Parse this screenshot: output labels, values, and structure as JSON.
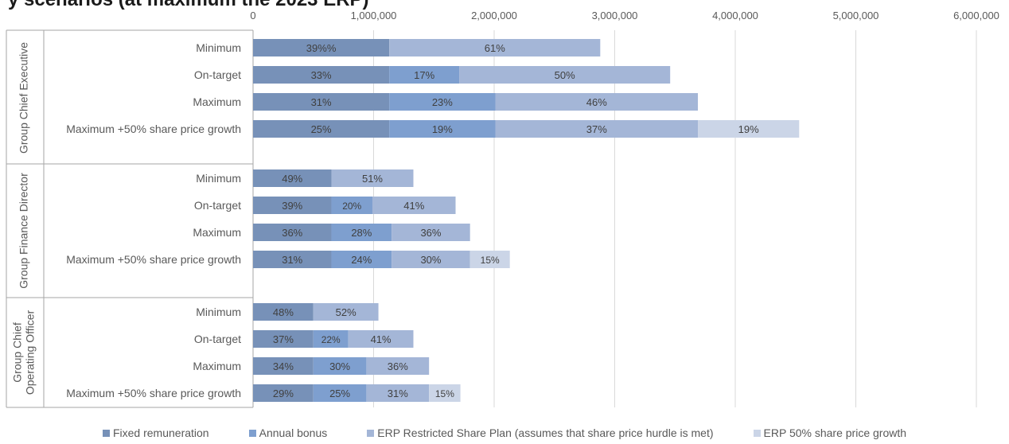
{
  "title": "y scenarios (at maximum the 2023 ERP)",
  "colors": {
    "fixed": "#7791b8",
    "bonus": "#7e9fcf",
    "erp": "#a4b6d7",
    "growth": "#cbd5e7",
    "grid": "#d9d9d9",
    "text": "#595959",
    "label": "#404040"
  },
  "chart_data": {
    "type": "bar",
    "orientation": "horizontal",
    "stacked": true,
    "xlim": [
      0,
      6000000
    ],
    "x_ticks": [
      "0",
      "1,000,000",
      "2,000,000",
      "3,000,000",
      "4,000,000",
      "5,000,000",
      "6,000,000"
    ],
    "x_axis_position": "top",
    "grid": true,
    "legend_position": "bottom",
    "series_names": [
      "Fixed remuneration",
      "Annual bonus",
      "ERP Restricted Share Plan (assumes that share price hurdle is met)",
      "ERP 50% share price growth"
    ],
    "groups": [
      {
        "label": "Group Chief Executive",
        "bars": [
          {
            "label": "Minimum",
            "values": [
              1130000,
              0,
              1750000,
              0
            ],
            "labels": [
              "39%%",
              "",
              "61%",
              ""
            ]
          },
          {
            "label": "On-target",
            "values": [
              1130000,
              580000,
              1750000,
              0
            ],
            "labels": [
              "33%",
              "17%",
              "50%",
              ""
            ]
          },
          {
            "label": "Maximum",
            "values": [
              1130000,
              880000,
              1680000,
              0
            ],
            "labels": [
              "31%",
              "23%",
              "46%",
              ""
            ]
          },
          {
            "label": "Maximum +50% share price growth",
            "values": [
              1130000,
              880000,
              1680000,
              840000
            ],
            "labels": [
              "25%",
              "19%",
              "37%",
              "19%"
            ]
          }
        ]
      },
      {
        "label": "Group Finance Director",
        "bars": [
          {
            "label": "Minimum",
            "values": [
              650000,
              0,
              680000,
              0
            ],
            "labels": [
              "49%",
              "",
              "51%",
              ""
            ]
          },
          {
            "label": "On-target",
            "values": [
              650000,
              340000,
              690000,
              0
            ],
            "labels": [
              "39%",
              "20%",
              "41%",
              ""
            ]
          },
          {
            "label": "Maximum",
            "values": [
              650000,
              500000,
              650000,
              0
            ],
            "labels": [
              "36%",
              "28%",
              "36%",
              ""
            ]
          },
          {
            "label": "Maximum +50% share price growth",
            "values": [
              650000,
              500000,
              650000,
              330000
            ],
            "labels": [
              "31%",
              "24%",
              "30%",
              "15%"
            ]
          }
        ]
      },
      {
        "label_lines": [
          "Group Chief",
          "Operating Officer"
        ],
        "bars": [
          {
            "label": "Minimum",
            "values": [
              500000,
              0,
              540000,
              0
            ],
            "labels": [
              "48%",
              "",
              "52%",
              ""
            ]
          },
          {
            "label": "On-target",
            "values": [
              500000,
              290000,
              540000,
              0
            ],
            "labels": [
              "37%",
              "22%",
              "41%",
              ""
            ]
          },
          {
            "label": "Maximum",
            "values": [
              500000,
              440000,
              520000,
              0
            ],
            "labels": [
              "34%",
              "30%",
              "36%",
              ""
            ]
          },
          {
            "label": "Maximum +50% share price growth",
            "values": [
              500000,
              440000,
              520000,
              260000
            ],
            "labels": [
              "29%",
              "25%",
              "31%",
              "15%"
            ]
          }
        ]
      }
    ]
  }
}
